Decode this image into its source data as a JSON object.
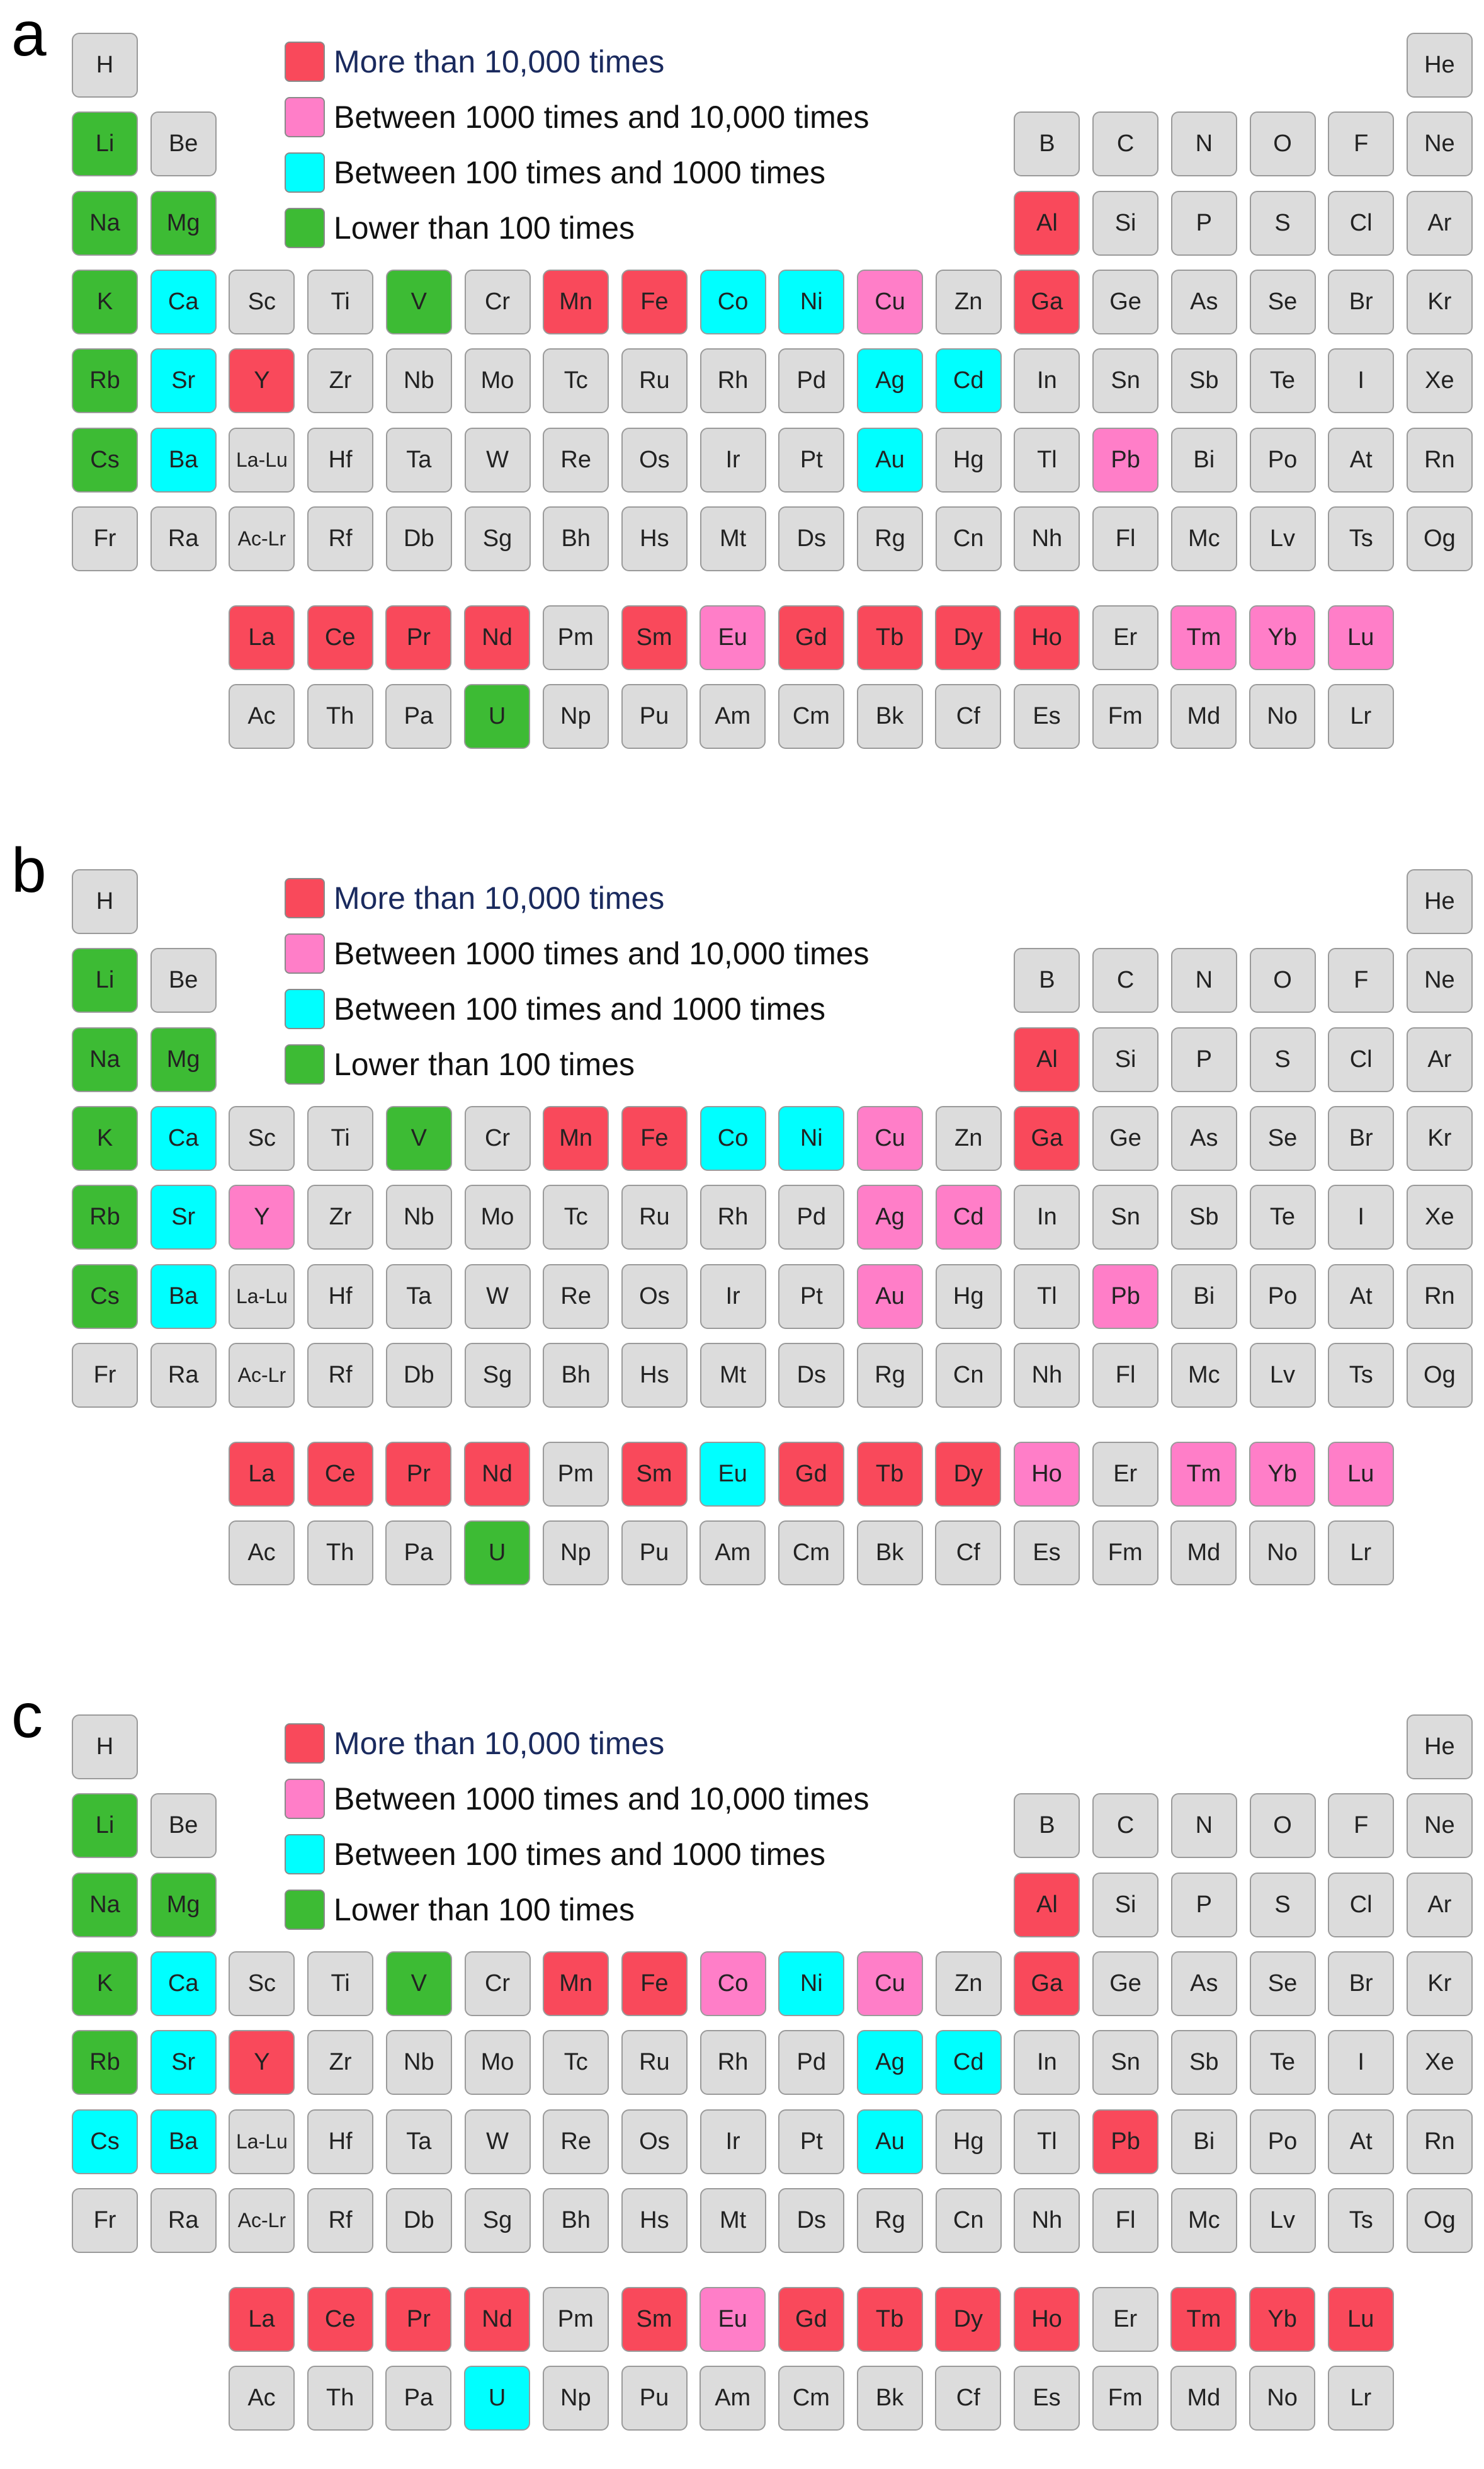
{
  "colors": {
    "r": "#f9495b",
    "p": "#ff7ec8",
    "c": "#00ffff",
    "g": "#3dbb34",
    "n": "#dcdcdc"
  },
  "legend": [
    {
      "key": "r",
      "label": "More than 10,000 times"
    },
    {
      "key": "p",
      "label": "Between 1000 times and 10,000 times"
    },
    {
      "key": "c",
      "label": "Between 100 times and 1000 times"
    },
    {
      "key": "g",
      "label": "Lower than 100 times"
    }
  ],
  "table_rows": [
    [
      "H",
      "",
      "",
      "",
      "",
      "",
      "",
      "",
      "",
      "",
      "",
      "",
      "",
      "",
      "",
      "",
      "",
      "He"
    ],
    [
      "Li",
      "Be",
      "",
      "",
      "",
      "",
      "",
      "",
      "",
      "",
      "",
      "",
      "B",
      "C",
      "N",
      "O",
      "F",
      "Ne"
    ],
    [
      "Na",
      "Mg",
      "",
      "",
      "",
      "",
      "",
      "",
      "",
      "",
      "",
      "",
      "Al",
      "Si",
      "P",
      "S",
      "Cl",
      "Ar"
    ],
    [
      "K",
      "Ca",
      "Sc",
      "Ti",
      "V",
      "Cr",
      "Mn",
      "Fe",
      "Co",
      "Ni",
      "Cu",
      "Zn",
      "Ga",
      "Ge",
      "As",
      "Se",
      "Br",
      "Kr"
    ],
    [
      "Rb",
      "Sr",
      "Y",
      "Zr",
      "Nb",
      "Mo",
      "Tc",
      "Ru",
      "Rh",
      "Pd",
      "Ag",
      "Cd",
      "In",
      "Sn",
      "Sb",
      "Te",
      "I",
      "Xe"
    ],
    [
      "Cs",
      "Ba",
      "La-Lu",
      "Hf",
      "Ta",
      "W",
      "Re",
      "Os",
      "Ir",
      "Pt",
      "Au",
      "Hg",
      "Tl",
      "Pb",
      "Bi",
      "Po",
      "At",
      "Rn"
    ],
    [
      "Fr",
      "Ra",
      "Ac-Lr",
      "Rf",
      "Db",
      "Sg",
      "Bh",
      "Hs",
      "Mt",
      "Ds",
      "Rg",
      "Cn",
      "Nh",
      "Fl",
      "Mc",
      "Lv",
      "Ts",
      "Og"
    ]
  ],
  "f_rows": [
    [
      "La",
      "Ce",
      "Pr",
      "Nd",
      "Pm",
      "Sm",
      "Eu",
      "Gd",
      "Tb",
      "Dy",
      "Ho",
      "Er",
      "Tm",
      "Yb",
      "Lu"
    ],
    [
      "Ac",
      "Th",
      "Pa",
      "U",
      "Np",
      "Pu",
      "Am",
      "Cm",
      "Bk",
      "Cf",
      "Es",
      "Fm",
      "Md",
      "No",
      "Lr"
    ]
  ],
  "panels": [
    {
      "label": "a",
      "categories": {
        "Li": "g",
        "Na": "g",
        "Mg": "g",
        "K": "g",
        "V": "g",
        "Rb": "g",
        "Cs": "g",
        "U": "g",
        "Ca": "c",
        "Co": "c",
        "Ni": "c",
        "Sr": "c",
        "Ag": "c",
        "Cd": "c",
        "Ba": "c",
        "Au": "c",
        "Cu": "p",
        "Pb": "p",
        "Eu": "p",
        "Tm": "p",
        "Yb": "p",
        "Lu": "p",
        "Al": "r",
        "Mn": "r",
        "Fe": "r",
        "Ga": "r",
        "Y": "r",
        "La": "r",
        "Ce": "r",
        "Pr": "r",
        "Nd": "r",
        "Sm": "r",
        "Gd": "r",
        "Tb": "r",
        "Dy": "r",
        "Ho": "r"
      }
    },
    {
      "label": "b",
      "categories": {
        "Li": "g",
        "Na": "g",
        "Mg": "g",
        "K": "g",
        "V": "g",
        "Rb": "g",
        "Cs": "g",
        "U": "g",
        "Ca": "c",
        "Co": "c",
        "Ni": "c",
        "Sr": "c",
        "Ba": "c",
        "Eu": "c",
        "Cu": "p",
        "Y": "p",
        "Ag": "p",
        "Cd": "p",
        "Au": "p",
        "Pb": "p",
        "Ho": "p",
        "Tm": "p",
        "Yb": "p",
        "Lu": "p",
        "Al": "r",
        "Mn": "r",
        "Fe": "r",
        "Ga": "r",
        "La": "r",
        "Ce": "r",
        "Pr": "r",
        "Nd": "r",
        "Sm": "r",
        "Gd": "r",
        "Tb": "r",
        "Dy": "r"
      }
    },
    {
      "label": "c",
      "categories": {
        "Li": "g",
        "Na": "g",
        "Mg": "g",
        "K": "g",
        "V": "g",
        "Rb": "g",
        "Ca": "c",
        "Ni": "c",
        "Sr": "c",
        "Ag": "c",
        "Cd": "c",
        "Cs": "c",
        "Ba": "c",
        "Au": "c",
        "U": "c",
        "Co": "p",
        "Cu": "p",
        "Eu": "p",
        "Al": "r",
        "Mn": "r",
        "Fe": "r",
        "Ga": "r",
        "Y": "r",
        "Pb": "r",
        "La": "r",
        "Ce": "r",
        "Pr": "r",
        "Nd": "r",
        "Sm": "r",
        "Gd": "r",
        "Tb": "r",
        "Dy": "r",
        "Ho": "r",
        "Tm": "r",
        "Yb": "r",
        "Lu": "r"
      }
    }
  ]
}
